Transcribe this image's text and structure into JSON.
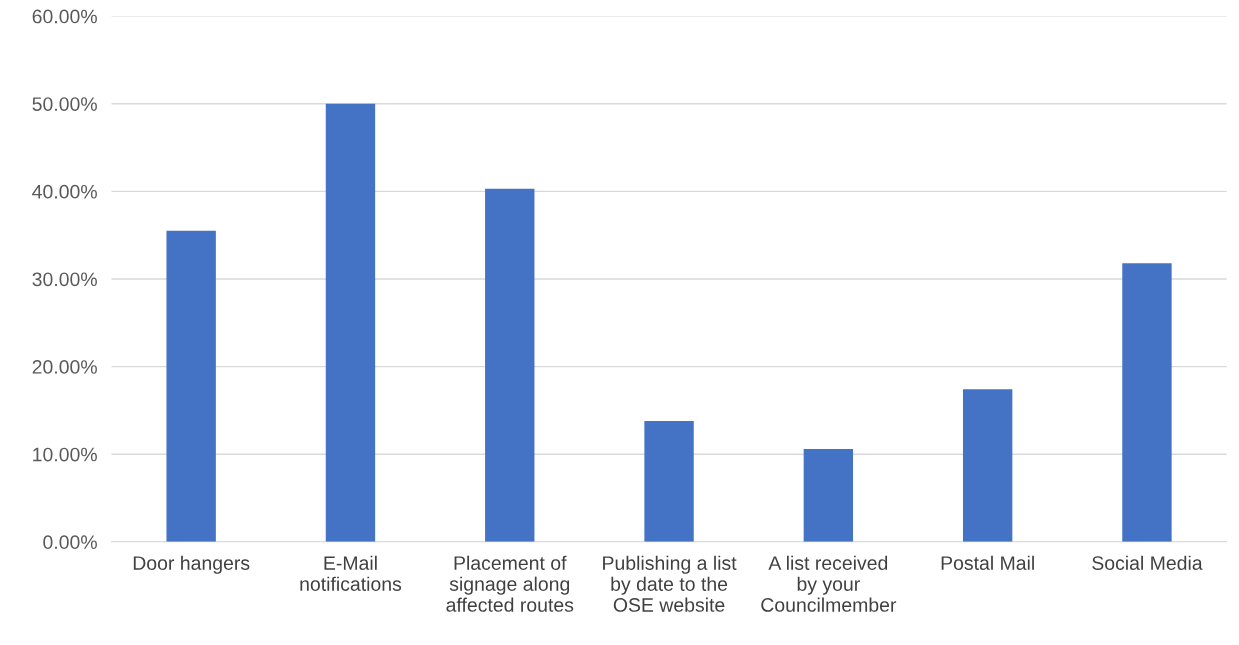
{
  "chart_data": {
    "type": "bar",
    "categories": [
      "Door hangers",
      "E-Mail\nnotifications",
      "Placement of\nsignage along\naffected routes",
      "Publishing a list\nby date to the\nOSE website",
      "A list received\nby your\nCouncilmember",
      "Postal Mail",
      "Social Media"
    ],
    "values": [
      35.5,
      50.0,
      40.3,
      13.8,
      10.6,
      17.4,
      31.8
    ],
    "color": "#4472c4",
    "ylim": [
      0,
      60
    ],
    "yticks": [
      {
        "value": 0,
        "label": "0.00%"
      },
      {
        "value": 10,
        "label": "10.00%"
      },
      {
        "value": 20,
        "label": "20.00%"
      },
      {
        "value": 30,
        "label": "30.00%"
      },
      {
        "value": 40,
        "label": "40.00%"
      },
      {
        "value": 50,
        "label": "50.00%"
      },
      {
        "value": 60,
        "label": "60.00%"
      }
    ],
    "grid": "y"
  }
}
